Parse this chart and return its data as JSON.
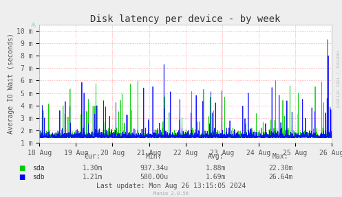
{
  "title": "Disk latency per device - by week",
  "ylabel": "Average IO Wait (seconds)",
  "background_color": "#EEEEEE",
  "plot_bg_color": "#FFFFFF",
  "grid_color": "#FF9999",
  "x_labels": [
    "18 Aug",
    "19 Aug",
    "20 Aug",
    "21 Aug",
    "22 Aug",
    "23 Aug",
    "24 Aug",
    "25 Aug",
    "26 Aug"
  ],
  "y_ticks": [
    1,
    2,
    3,
    4,
    5,
    6,
    7,
    8,
    9,
    10
  ],
  "y_labels": [
    "1 m",
    "2 m",
    "3 m",
    "4 m",
    "5 m",
    "6 m",
    "7 m",
    "8 m",
    "9 m",
    "10 m"
  ],
  "ylim_min": 1,
  "ylim_max": 10.5,
  "sda_color": "#00CC00",
  "sdb_color": "#0000FF",
  "legend_items": [
    "sda",
    "sdb"
  ],
  "cur_label": "Cur:",
  "min_label": "Min:",
  "avg_label": "Avg:",
  "max_label": "Max:",
  "sda_cur": "1.30m",
  "sda_min": "937.34u",
  "sda_avg": "1.88m",
  "sda_max": "22.30m",
  "sdb_cur": "1.21m",
  "sdb_min": "580.00u",
  "sdb_avg": "1.69m",
  "sdb_max": "26.64m",
  "last_update": "Last update: Mon Aug 26 13:15:05 2024",
  "munin_version": "Munin 2.0.56",
  "rrdtool_text": "RRDTOOL / TOBI OETIKER",
  "title_fontsize": 10,
  "axis_fontsize": 7,
  "legend_fontsize": 7,
  "stats_fontsize": 7
}
